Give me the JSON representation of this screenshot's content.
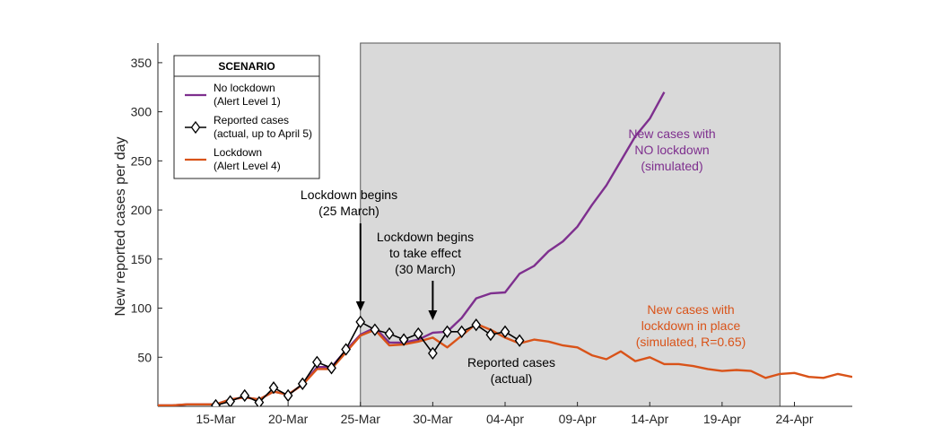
{
  "chart_data": {
    "type": "line",
    "ylabel": "New reported cases per day",
    "xlabel": "",
    "xlim": [
      11,
      59
    ],
    "ylim": [
      0,
      370
    ],
    "x_ticks": [
      {
        "day": 15,
        "label": "15-Mar"
      },
      {
        "day": 20,
        "label": "20-Mar"
      },
      {
        "day": 25,
        "label": "25-Mar"
      },
      {
        "day": 30,
        "label": "30-Mar"
      },
      {
        "day": 35,
        "label": "04-Apr"
      },
      {
        "day": 40,
        "label": "09-Apr"
      },
      {
        "day": 45,
        "label": "14-Apr"
      },
      {
        "day": 50,
        "label": "19-Apr"
      },
      {
        "day": 55,
        "label": "24-Apr"
      }
    ],
    "y_ticks": [
      50,
      100,
      150,
      200,
      250,
      300,
      350
    ],
    "shaded_region": {
      "from": "25-Mar",
      "to": "23-Apr",
      "color": "#d9d9d9"
    },
    "legend": {
      "title": "SCENARIO",
      "placement": "top-left",
      "entries": [
        {
          "line1": "No lockdown",
          "line2": "(Alert Level 1)",
          "color": "#7E2F8E",
          "marker": "none"
        },
        {
          "line1": "Reported cases",
          "line2": "(actual, up to April 5)",
          "color": "#000000",
          "marker": "diamond"
        },
        {
          "line1": "Lockdown",
          "line2": "(Alert Level 4)",
          "color": "#D95319",
          "marker": "none"
        }
      ]
    },
    "series": [
      {
        "name": "No lockdown (Alert Level 1)",
        "color": "#7E2F8E",
        "x": [
          11,
          12,
          13,
          14,
          15,
          16,
          17,
          18,
          19,
          20,
          21,
          22,
          23,
          24,
          25,
          26,
          27,
          28,
          29,
          30,
          31,
          32,
          33,
          34,
          35,
          36,
          37,
          38,
          39,
          40,
          41,
          42,
          43,
          44,
          45,
          46
        ],
        "y": [
          1,
          1,
          2,
          2,
          2,
          7,
          9,
          7,
          15,
          12,
          22,
          40,
          40,
          57,
          73,
          80,
          65,
          65,
          68,
          75,
          76,
          90,
          110,
          115,
          116,
          135,
          143,
          158,
          168,
          183,
          205,
          225,
          250,
          275,
          293,
          320
        ]
      },
      {
        "name": "Reported cases (actual, up to April 5)",
        "color": "#000000",
        "x": [
          15,
          16,
          17,
          18,
          19,
          20,
          21,
          22,
          23,
          24,
          25,
          26,
          27,
          28,
          29,
          30,
          31,
          32,
          33,
          34,
          35,
          36
        ],
        "y": [
          1,
          5,
          11,
          4,
          19,
          11,
          23,
          45,
          39,
          58,
          86,
          78,
          74,
          68,
          74,
          54,
          76,
          76,
          83,
          73,
          76,
          67
        ]
      },
      {
        "name": "Lockdown (Alert Level 4)",
        "color": "#D95319",
        "x": [
          11,
          12,
          13,
          14,
          15,
          16,
          17,
          18,
          19,
          20,
          21,
          22,
          23,
          24,
          25,
          26,
          27,
          28,
          29,
          30,
          31,
          32,
          33,
          34,
          35,
          36,
          37,
          38,
          39,
          40,
          41,
          42,
          43,
          44,
          45,
          46,
          47,
          48,
          49,
          50,
          51,
          52,
          53,
          54,
          55,
          56,
          57,
          58,
          59
        ],
        "y": [
          1,
          1,
          2,
          2,
          2,
          7,
          9,
          7,
          15,
          12,
          22,
          38,
          38,
          55,
          72,
          78,
          62,
          63,
          66,
          70,
          60,
          72,
          84,
          78,
          70,
          64,
          68,
          66,
          62,
          60,
          52,
          48,
          56,
          46,
          50,
          43,
          43,
          41,
          38,
          36,
          37,
          36,
          29,
          33,
          34,
          30,
          29,
          33,
          30
        ]
      }
    ],
    "annotations": [
      {
        "lines": [
          "Lockdown begins",
          "(25 March)"
        ],
        "color": "#000000",
        "arrow_to_day": 25
      },
      {
        "lines": [
          "Lockdown begins",
          "to take effect",
          "(30 March)"
        ],
        "color": "#000000",
        "arrow_to_day": 30
      },
      {
        "lines": [
          "New cases with",
          "NO lockdown",
          "(simulated)"
        ],
        "color": "#7E2F8E"
      },
      {
        "lines": [
          "New cases with",
          "lockdown in place",
          "(simulated, R=0.65)"
        ],
        "color": "#D95319"
      },
      {
        "lines": [
          "Reported cases",
          "(actual)"
        ],
        "color": "#000000"
      }
    ]
  }
}
